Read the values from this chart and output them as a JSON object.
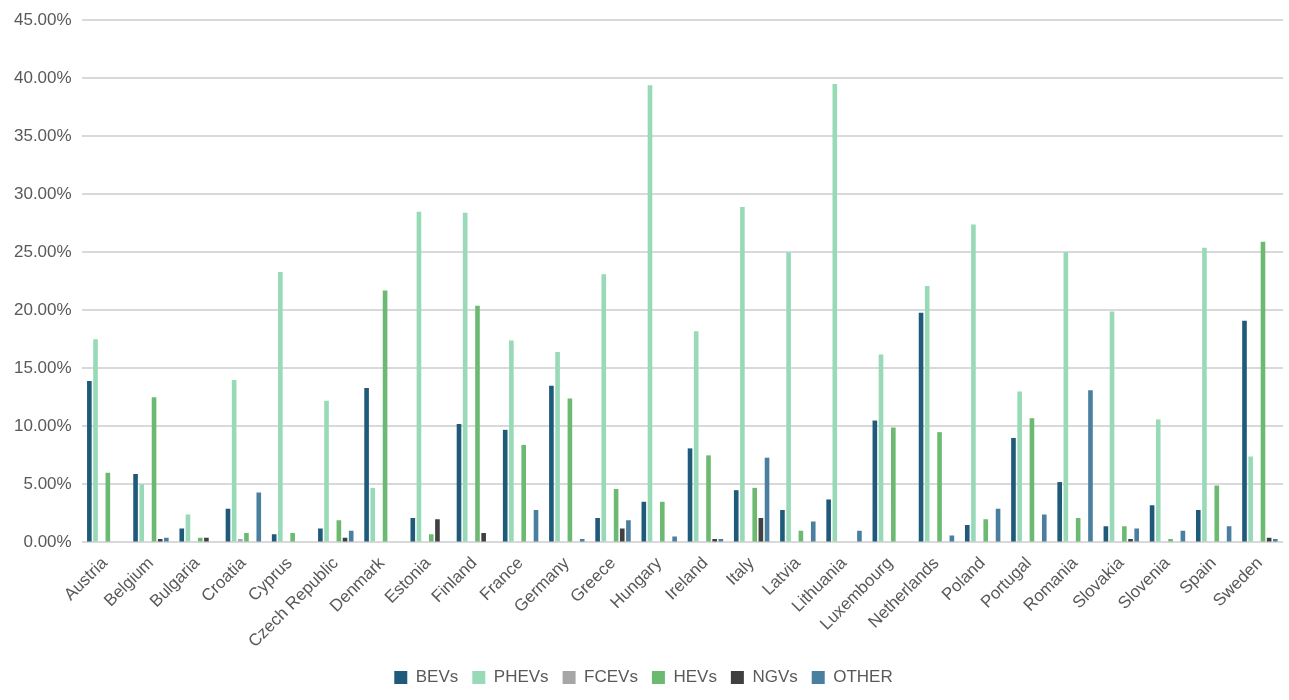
{
  "chart_data": {
    "type": "bar",
    "categories": [
      "Austria",
      "Belgium",
      "Bulgaria",
      "Croatia",
      "Cyprus",
      "Czech Republic",
      "Denmark",
      "Estonia",
      "Finland",
      "France",
      "Germany",
      "Greece",
      "Hungary",
      "Ireland",
      "Italy",
      "Latvia",
      "Lithuania",
      "Luxembourg",
      "Netherlands",
      "Poland",
      "Portugal",
      "Romania",
      "Slovakia",
      "Slovenia",
      "Spain",
      "Sweden"
    ],
    "series": [
      {
        "name": "BEVs",
        "color": "#1f5a7a",
        "values": [
          13.9,
          5.9,
          1.2,
          2.9,
          0.7,
          1.2,
          13.3,
          2.1,
          10.2,
          9.7,
          13.5,
          2.1,
          3.5,
          8.1,
          4.5,
          2.8,
          3.7,
          10.5,
          19.8,
          1.5,
          9.0,
          5.2,
          1.4,
          3.2,
          2.8,
          19.1
        ]
      },
      {
        "name": "PHEVs",
        "color": "#98dab8",
        "values": [
          17.5,
          5.0,
          2.4,
          14.0,
          23.3,
          12.2,
          4.7,
          28.5,
          28.4,
          17.4,
          16.4,
          23.1,
          39.4,
          18.2,
          28.9,
          25.0,
          39.5,
          16.2,
          22.1,
          27.4,
          13.0,
          25.0,
          19.9,
          10.6,
          25.4,
          7.4
        ]
      },
      {
        "name": "FCEVs",
        "color": "#a6a6a6",
        "values": [
          null,
          null,
          null,
          0.3,
          null,
          null,
          null,
          null,
          null,
          null,
          null,
          null,
          null,
          null,
          null,
          null,
          null,
          null,
          null,
          null,
          null,
          null,
          null,
          null,
          null,
          null
        ]
      },
      {
        "name": "HEVs",
        "color": "#6cba72",
        "values": [
          6.0,
          12.5,
          0.4,
          0.8,
          0.8,
          1.9,
          21.7,
          0.7,
          20.4,
          8.4,
          12.4,
          4.6,
          3.5,
          7.5,
          4.7,
          1.0,
          null,
          9.9,
          9.5,
          2.0,
          10.7,
          2.1,
          1.4,
          0.3,
          4.9,
          25.9
        ]
      },
      {
        "name": "NGVs",
        "color": "#404040",
        "values": [
          null,
          0.3,
          0.4,
          null,
          null,
          0.4,
          null,
          2.0,
          0.8,
          null,
          null,
          1.2,
          null,
          0.3,
          2.1,
          null,
          null,
          null,
          null,
          null,
          null,
          null,
          0.3,
          null,
          null,
          0.4
        ]
      },
      {
        "name": "OTHER",
        "color": "#4a7fa0",
        "values": [
          null,
          0.4,
          null,
          4.3,
          null,
          1.0,
          null,
          null,
          null,
          2.8,
          0.3,
          1.9,
          0.5,
          0.3,
          7.3,
          1.8,
          1.0,
          null,
          0.6,
          2.9,
          2.4,
          13.1,
          1.2,
          1.0,
          1.4,
          0.3
        ]
      }
    ],
    "ylim": [
      0,
      45
    ],
    "yticks": [
      {
        "value": 0,
        "label": "0.00%"
      },
      {
        "value": 5,
        "label": "5.00%"
      },
      {
        "value": 10,
        "label": "10.00%"
      },
      {
        "value": 15,
        "label": "15.00%"
      },
      {
        "value": 20,
        "label": "20.00%"
      },
      {
        "value": 25,
        "label": "25.00%"
      },
      {
        "value": 30,
        "label": "30.00%"
      },
      {
        "value": 35,
        "label": "35.00%"
      },
      {
        "value": 40,
        "label": "40.00%"
      },
      {
        "value": 45,
        "label": "45.00%"
      }
    ],
    "grid": "y",
    "legend": "bottom"
  }
}
